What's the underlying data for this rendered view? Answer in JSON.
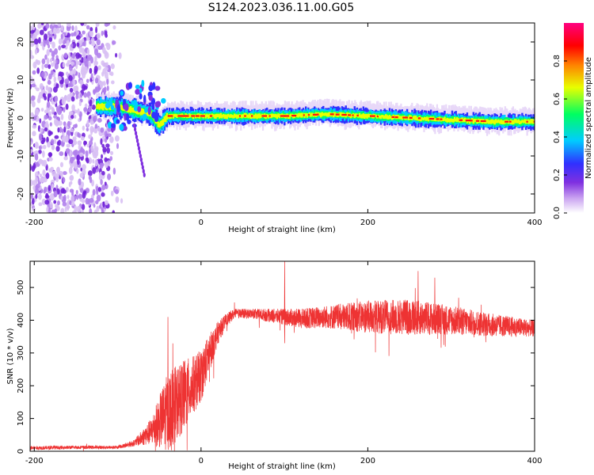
{
  "title": "S124.2023.036.11.00.G05",
  "chart_data": [
    {
      "type": "heatmap",
      "xlabel": "Height of straight line (km)",
      "ylabel": "Frequency (Hz)",
      "xlim": [
        -205,
        400
      ],
      "ylim": [
        -25,
        25
      ],
      "xticks": [
        -200,
        0,
        200,
        400
      ],
      "yticks": [
        -20,
        -10,
        0,
        10,
        20
      ],
      "colorbar": {
        "label": "Normalized spectral amplitude",
        "range": [
          0,
          1
        ],
        "ticks": [
          0.0,
          0.2,
          0.4,
          0.6,
          0.8
        ],
        "colors": [
          "#ffffff",
          "#c8a0f0",
          "#8030e0",
          "#3030ff",
          "#00ccff",
          "#00ff60",
          "#e8ff00",
          "#ff8000",
          "#ff0000",
          "#ff0080"
        ]
      },
      "ridge": {
        "description_points_x": [
          -120,
          -100,
          -80,
          -60,
          -50,
          -40,
          0,
          50,
          100,
          150,
          200,
          250,
          300,
          350,
          400
        ],
        "frequency_hz": [
          3,
          3,
          2,
          1,
          -2,
          0.5,
          0.5,
          0.5,
          0.5,
          1,
          0.5,
          0,
          -0.5,
          -1,
          -1
        ]
      },
      "noise_region_x": [
        -205,
        -110
      ]
    },
    {
      "type": "line",
      "xlabel": "Height of straight line (km)",
      "ylabel": "SNR (10 * v/v)",
      "xlim": [
        -205,
        400
      ],
      "ylim": [
        0,
        580
      ],
      "xticks": [
        -200,
        0,
        200,
        400
      ],
      "yticks": [
        0,
        100,
        200,
        300,
        400,
        500
      ],
      "color": "#ee3333",
      "envelope": {
        "x": [
          -205,
          -150,
          -100,
          -80,
          -60,
          -40,
          -20,
          -10,
          0,
          10,
          20,
          30,
          40,
          60,
          80,
          100,
          120,
          150,
          200,
          250,
          300,
          350,
          400
        ],
        "y": [
          10,
          12,
          12,
          25,
          60,
          120,
          170,
          200,
          230,
          300,
          360,
          400,
          420,
          420,
          415,
          410,
          405,
          410,
          410,
          410,
          400,
          385,
          375
        ],
        "amp": [
          6,
          5,
          5,
          10,
          40,
          120,
          110,
          90,
          80,
          60,
          35,
          20,
          15,
          15,
          20,
          25,
          30,
          35,
          50,
          55,
          45,
          35,
          25
        ]
      },
      "spikes": [
        {
          "x": 100,
          "y": 580
        },
        {
          "x": 100,
          "y": 330
        },
        {
          "x": -40,
          "y": 410
        },
        {
          "x": 260,
          "y": 550
        },
        {
          "x": 280,
          "y": 530
        }
      ]
    }
  ]
}
